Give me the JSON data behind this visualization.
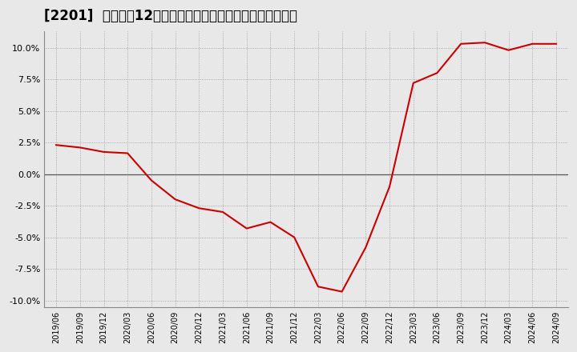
{
  "title": "[2201]  売上高の12か月移動合計の対前年同期増減率の推移",
  "line_color": "#cc0000",
  "background_color": "#e8e8e8",
  "plot_background_color": "#e8e8e8",
  "grid_color": "#999999",
  "zero_line_color": "#555555",
  "ylim": [
    -0.105,
    0.113
  ],
  "yticks": [
    -0.1,
    -0.075,
    -0.05,
    -0.025,
    0.0,
    0.025,
    0.05,
    0.075,
    0.1
  ],
  "dates": [
    "2019/06",
    "2019/09",
    "2019/12",
    "2020/03",
    "2020/06",
    "2020/09",
    "2020/12",
    "2021/03",
    "2021/06",
    "2021/09",
    "2021/12",
    "2022/03",
    "2022/06",
    "2022/09",
    "2022/12",
    "2023/03",
    "2023/06",
    "2023/09",
    "2023/12",
    "2024/03",
    "2024/06",
    "2024/09"
  ],
  "values": [
    0.023,
    0.021,
    0.0175,
    0.0165,
    -0.005,
    -0.02,
    -0.027,
    -0.03,
    -0.043,
    -0.038,
    -0.05,
    -0.089,
    -0.093,
    -0.058,
    -0.01,
    0.072,
    0.08,
    0.103,
    0.104,
    0.098,
    0.103,
    0.103
  ],
  "title_fontsize": 12,
  "tick_fontsize": 8,
  "line_width": 1.5
}
